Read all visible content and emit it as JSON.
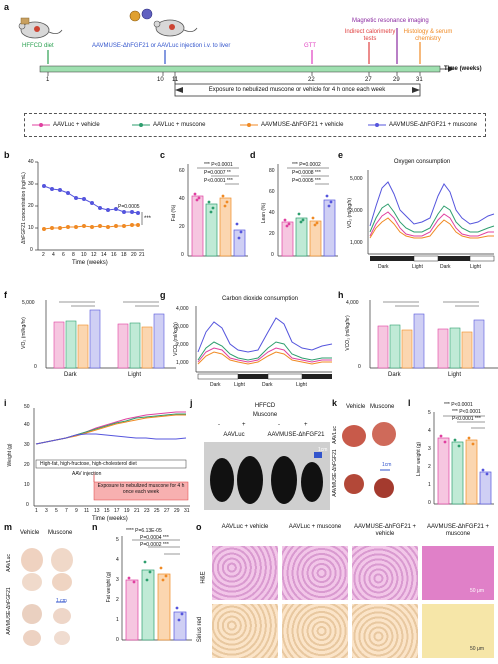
{
  "panels": [
    "a",
    "b",
    "c",
    "d",
    "e",
    "f",
    "g",
    "h",
    "i",
    "j",
    "k",
    "l",
    "m",
    "n",
    "o"
  ],
  "colors": {
    "aav_luc_vehicle": "#e040a0",
    "aav_luc_muscone": "#2e9e6e",
    "aav_fgf21_vehicle": "#f08a24",
    "aav_fgf21_muscone": "#5555dd"
  },
  "panel_a": {
    "hffcd_diet": "HFFCD diet",
    "injection": "AAVMUSE-ΔhFGF21 or AAVLuc injection i.v. to liver",
    "gtt": "GTT",
    "calorimetry": "Indirect calorimetry tests",
    "mri": "Magnetic resonance imaging",
    "histology": "Histology & serum chemistry",
    "time_label": "Time (weeks)",
    "ticks": [
      "1",
      "10",
      "11",
      "22",
      "27",
      "29",
      "31"
    ],
    "exposure": "Exposure to nebulized muscone or vehicle for 4 h once each week"
  },
  "legend": {
    "g1": "AAVLuc + vehicle",
    "g2": "AAVLuc + muscone",
    "g3": "AAVMUSE-ΔhFGF21 + vehicle",
    "g4": "AAVMUSE-ΔhFGF21 + muscone"
  },
  "panel_b": {
    "ylabel": "ΔhFGF21 concentration (ng/mL)",
    "xlabel": "Time (weeks)",
    "pval": "P=0.0005",
    "stars": "***",
    "xticks": [
      "2",
      "4",
      "6",
      "8",
      "10",
      "12",
      "14",
      "16",
      "18",
      "20",
      "21"
    ],
    "yticks": [
      "0",
      "10",
      "20",
      "30",
      "40"
    ]
  },
  "panel_c": {
    "ylabel": "Fat (%)",
    "yticks": [
      "0",
      "20",
      "40",
      "60"
    ],
    "p1": "*** P<0.0001",
    "p2": "P=0.0007 **",
    "p3": "P<0.0001 ***"
  },
  "panel_d": {
    "ylabel": "Lean (%)",
    "yticks": [
      "0",
      "20",
      "40",
      "60",
      "80"
    ],
    "p1": "*** P=0.0002",
    "p2": "P=0.0008 ***",
    "p3": "P=0.0005 ***"
  },
  "panel_e": {
    "title": "Oxygen consumption",
    "ylabel": "VO₂ (ml/kg/h)",
    "yticks": [
      "1,000",
      "3,000",
      "5,000"
    ],
    "dark": "Dark",
    "light": "Light"
  },
  "panel_f": {
    "ylabel": "VO₂ (ml/kg/hr)",
    "groups": [
      "Dark",
      "Light"
    ],
    "yticks": [
      "0",
      "1,000",
      "2,000",
      "3,000",
      "4,000",
      "5,000"
    ]
  },
  "panel_g": {
    "title": "Carbon dioxide consumption",
    "ylabel": "VCO₂ (ml/kg/h)",
    "yticks": [
      "1,000",
      "2,000",
      "3,000",
      "4,000"
    ],
    "dark": "Dark",
    "light": "Light"
  },
  "panel_h": {
    "ylabel": "VCO₂ (ml/kg/hr)",
    "groups": [
      "Dark",
      "Light"
    ],
    "yticks": [
      "0",
      "1,000",
      "2,000",
      "3,000",
      "4,000"
    ]
  },
  "panel_i": {
    "ylabel": "Weight (g)",
    "xlabel": "Time (weeks)",
    "diet": "High-fat, high-fructose, high-cholesterol diet",
    "injection": "AAV injection",
    "exposure": "Exposure to nebulized muscone for 4 h once each week",
    "xticks": [
      "1",
      "3",
      "5",
      "7",
      "9",
      "11",
      "13",
      "15",
      "17",
      "19",
      "21",
      "23",
      "25",
      "27",
      "29",
      "31"
    ],
    "yticks": [
      "0",
      "10",
      "20",
      "30",
      "40",
      "50"
    ]
  },
  "panel_j": {
    "diet": "HFFCD",
    "muscone": "Muscone",
    "minus": "-",
    "plus": "+",
    "aavluc": "AAVLuc",
    "aavfgf": "AAVMUSE-ΔhFGF21",
    "scale": "1cm"
  },
  "panel_k": {
    "vehicle": "Vehicle",
    "muscone": "Muscone",
    "aavluc": "AAVLuc",
    "aavfgf": "AAVMUSE-ΔhFGF21",
    "scale": "1cm"
  },
  "panel_l": {
    "ylabel": "Liver weight (g)",
    "yticks": [
      "0",
      "1",
      "2",
      "3",
      "4",
      "5"
    ],
    "p1": "*** P<0.0001",
    "p2": "*** P<0.0001",
    "p3": "P<0.0001 ***"
  },
  "panel_m": {
    "vehicle": "Vehicle",
    "muscone": "Muscone",
    "aavluc": "AAVLuc",
    "aavfgf": "AAVMUSE-ΔhFGF21",
    "scale": "1 cm"
  },
  "panel_n": {
    "ylabel": "Fat weight (g)",
    "yticks": [
      "0",
      "1",
      "2",
      "3",
      "4",
      "5"
    ],
    "p1": "**** P=6.13E-05",
    "p2": "P=0.0004 ***",
    "p3": "P=0.0002 ***"
  },
  "panel_o": {
    "cols": [
      "AAVLuc + vehicle",
      "AAVLuc + muscone",
      "AAVMUSE-ΔhFGF21 + vehicle",
      "AAVMUSE-ΔhFGF21 + muscone"
    ],
    "rows": [
      "H&E",
      "Sirius red"
    ],
    "scale": "50 μm"
  }
}
